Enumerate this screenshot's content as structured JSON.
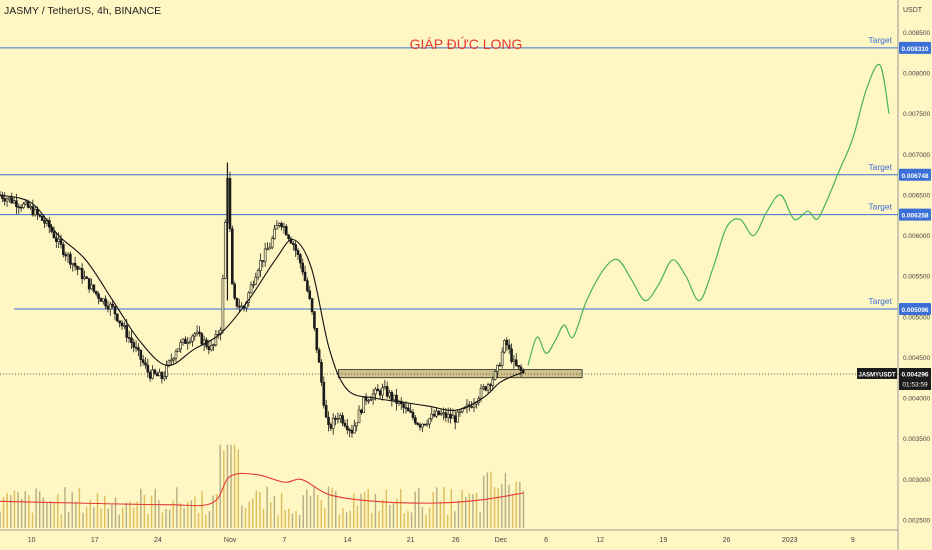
{
  "header": {
    "symbol_line": "JASMY / TetherUS, 4h, BINANCE",
    "headline": "GIÁP ĐỨC LONG",
    "axis_unit": "USDT"
  },
  "colors": {
    "background": "#fef6c3",
    "target_line": "#3b6fd6",
    "price_line": "#333333",
    "candles": "#1a1a1a",
    "moving_average": "#111111",
    "forecast": "#49b35a",
    "volume_up": "#d9b14a",
    "volume_down": "#a89f78",
    "volume_ma": "#e53935",
    "headline": "#e53935",
    "support_zone": "#cfc08a"
  },
  "chart_data": {
    "type": "line",
    "title": "GIÁP ĐỨC LONG",
    "symbol": "JASMY / TetherUS, 4h, BINANCE",
    "ylabel": "USDT",
    "ylim": [
      0.0024,
      0.0089
    ],
    "y_ticks": [
      0.0025,
      0.003,
      0.0035,
      0.004,
      0.0045,
      0.005,
      0.0055,
      0.006,
      0.0065,
      0.007,
      0.0075,
      0.008,
      0.0085
    ],
    "y_tick_labels": [
      "0.002500",
      "0.003000",
      "0.003500",
      "0.004000",
      "0.004500",
      "0.005000",
      "0.005500",
      "0.006000",
      "0.006500",
      "0.007000",
      "0.007500",
      "0.008000",
      "0.008500"
    ],
    "x_ticks": [
      {
        "label": "10",
        "t": 0
      },
      {
        "label": "17",
        "t": 7
      },
      {
        "label": "24",
        "t": 14
      },
      {
        "label": "Nov",
        "t": 22
      },
      {
        "label": "7",
        "t": 28
      },
      {
        "label": "14",
        "t": 35
      },
      {
        "label": "21",
        "t": 42
      },
      {
        "label": "26",
        "t": 47
      },
      {
        "label": "Dec",
        "t": 52
      },
      {
        "label": "6",
        "t": 57
      },
      {
        "label": "12",
        "t": 63
      },
      {
        "label": "19",
        "t": 70
      },
      {
        "label": "26",
        "t": 77
      },
      {
        "label": "2023",
        "t": 84
      },
      {
        "label": "9",
        "t": 91
      }
    ],
    "xlim": [
      -3.5,
      96
    ],
    "targets": [
      {
        "label": "Target",
        "value": 0.00831,
        "value_label": "0.008310"
      },
      {
        "label": "Target",
        "value": 0.006748,
        "value_label": "0.006748"
      },
      {
        "label": "Target",
        "value": 0.006258,
        "value_label": "0.006258"
      },
      {
        "label": "Target",
        "value": 0.005096,
        "value_label": "0.005096"
      }
    ],
    "current_price": {
      "symbol_label": "JASMYUSDT",
      "value": 0.004296,
      "value_label": "0.004296",
      "countdown": "01:53:59"
    },
    "support_zone": {
      "t_start": 34,
      "t_end": 61,
      "low": 0.00425,
      "high": 0.00435
    },
    "price_path": [
      [
        -3.5,
        0.0065
      ],
      [
        -1.5,
        0.0064
      ],
      [
        0,
        0.00632
      ],
      [
        2,
        0.0061
      ],
      [
        3,
        0.0059
      ],
      [
        5,
        0.0056
      ],
      [
        7,
        0.0053
      ],
      [
        9,
        0.0051
      ],
      [
        10,
        0.0049
      ],
      [
        11,
        0.0047
      ],
      [
        12,
        0.0045
      ],
      [
        13,
        0.0043
      ],
      [
        14.5,
        0.00425
      ],
      [
        16,
        0.0046
      ],
      [
        18,
        0.0048
      ],
      [
        20,
        0.0046
      ],
      [
        21,
        0.0049
      ],
      [
        21.7,
        0.0068
      ],
      [
        22.3,
        0.0052
      ],
      [
        23.5,
        0.0051
      ],
      [
        25,
        0.0056
      ],
      [
        26.5,
        0.0059
      ],
      [
        27.5,
        0.0062
      ],
      [
        29,
        0.0059
      ],
      [
        30,
        0.0056
      ],
      [
        31,
        0.0051
      ],
      [
        32,
        0.0043
      ],
      [
        32.8,
        0.0036
      ],
      [
        34,
        0.0038
      ],
      [
        35.5,
        0.0036
      ],
      [
        37,
        0.004
      ],
      [
        39,
        0.0041
      ],
      [
        41,
        0.0039
      ],
      [
        43,
        0.00368
      ],
      [
        45,
        0.0038
      ],
      [
        47,
        0.00375
      ],
      [
        48.5,
        0.0039
      ],
      [
        50,
        0.0041
      ],
      [
        51.5,
        0.0043
      ],
      [
        52.5,
        0.0047
      ],
      [
        53.5,
        0.0044
      ],
      [
        54.5,
        0.0043
      ]
    ],
    "moving_average_path": [
      [
        -3.5,
        0.0065
      ],
      [
        0,
        0.0064
      ],
      [
        3,
        0.006
      ],
      [
        6,
        0.0057
      ],
      [
        9,
        0.0052
      ],
      [
        12,
        0.0047
      ],
      [
        15,
        0.0044
      ],
      [
        18,
        0.0046
      ],
      [
        21,
        0.0048
      ],
      [
        24,
        0.0052
      ],
      [
        27,
        0.0057
      ],
      [
        29,
        0.00595
      ],
      [
        31,
        0.0056
      ],
      [
        33,
        0.0046
      ],
      [
        35,
        0.0041
      ],
      [
        38,
        0.004
      ],
      [
        41,
        0.00395
      ],
      [
        44,
        0.0039
      ],
      [
        47,
        0.00385
      ],
      [
        50,
        0.004
      ],
      [
        52,
        0.0042
      ],
      [
        54.5,
        0.00432
      ]
    ],
    "forecast_path": [
      [
        55,
        0.0044
      ],
      [
        56,
        0.00475
      ],
      [
        57,
        0.00455
      ],
      [
        58,
        0.0047
      ],
      [
        59,
        0.0049
      ],
      [
        60,
        0.00475
      ],
      [
        61.5,
        0.0052
      ],
      [
        63.5,
        0.0056
      ],
      [
        65,
        0.0057
      ],
      [
        66.5,
        0.00545
      ],
      [
        68,
        0.0052
      ],
      [
        69.5,
        0.0054
      ],
      [
        71,
        0.0057
      ],
      [
        72.5,
        0.0055
      ],
      [
        74,
        0.0052
      ],
      [
        75.5,
        0.0056
      ],
      [
        77,
        0.0061
      ],
      [
        78.5,
        0.0062
      ],
      [
        80,
        0.006
      ],
      [
        81.5,
        0.0063
      ],
      [
        83,
        0.0065
      ],
      [
        84.5,
        0.0062
      ],
      [
        86,
        0.0063
      ],
      [
        87,
        0.0062
      ],
      [
        88,
        0.0064
      ],
      [
        89.5,
        0.0068
      ],
      [
        91,
        0.0072
      ],
      [
        92.5,
        0.0078
      ],
      [
        94,
        0.0081
      ],
      [
        95,
        0.0075
      ]
    ],
    "volume_ma_path": [
      [
        -3.5,
        0.32
      ],
      [
        5,
        0.3
      ],
      [
        15,
        0.28
      ],
      [
        20,
        0.3
      ],
      [
        22,
        0.62
      ],
      [
        25,
        0.64
      ],
      [
        28,
        0.55
      ],
      [
        30,
        0.58
      ],
      [
        33,
        0.4
      ],
      [
        38,
        0.32
      ],
      [
        45,
        0.3
      ],
      [
        50,
        0.34
      ],
      [
        54.5,
        0.42
      ]
    ]
  }
}
